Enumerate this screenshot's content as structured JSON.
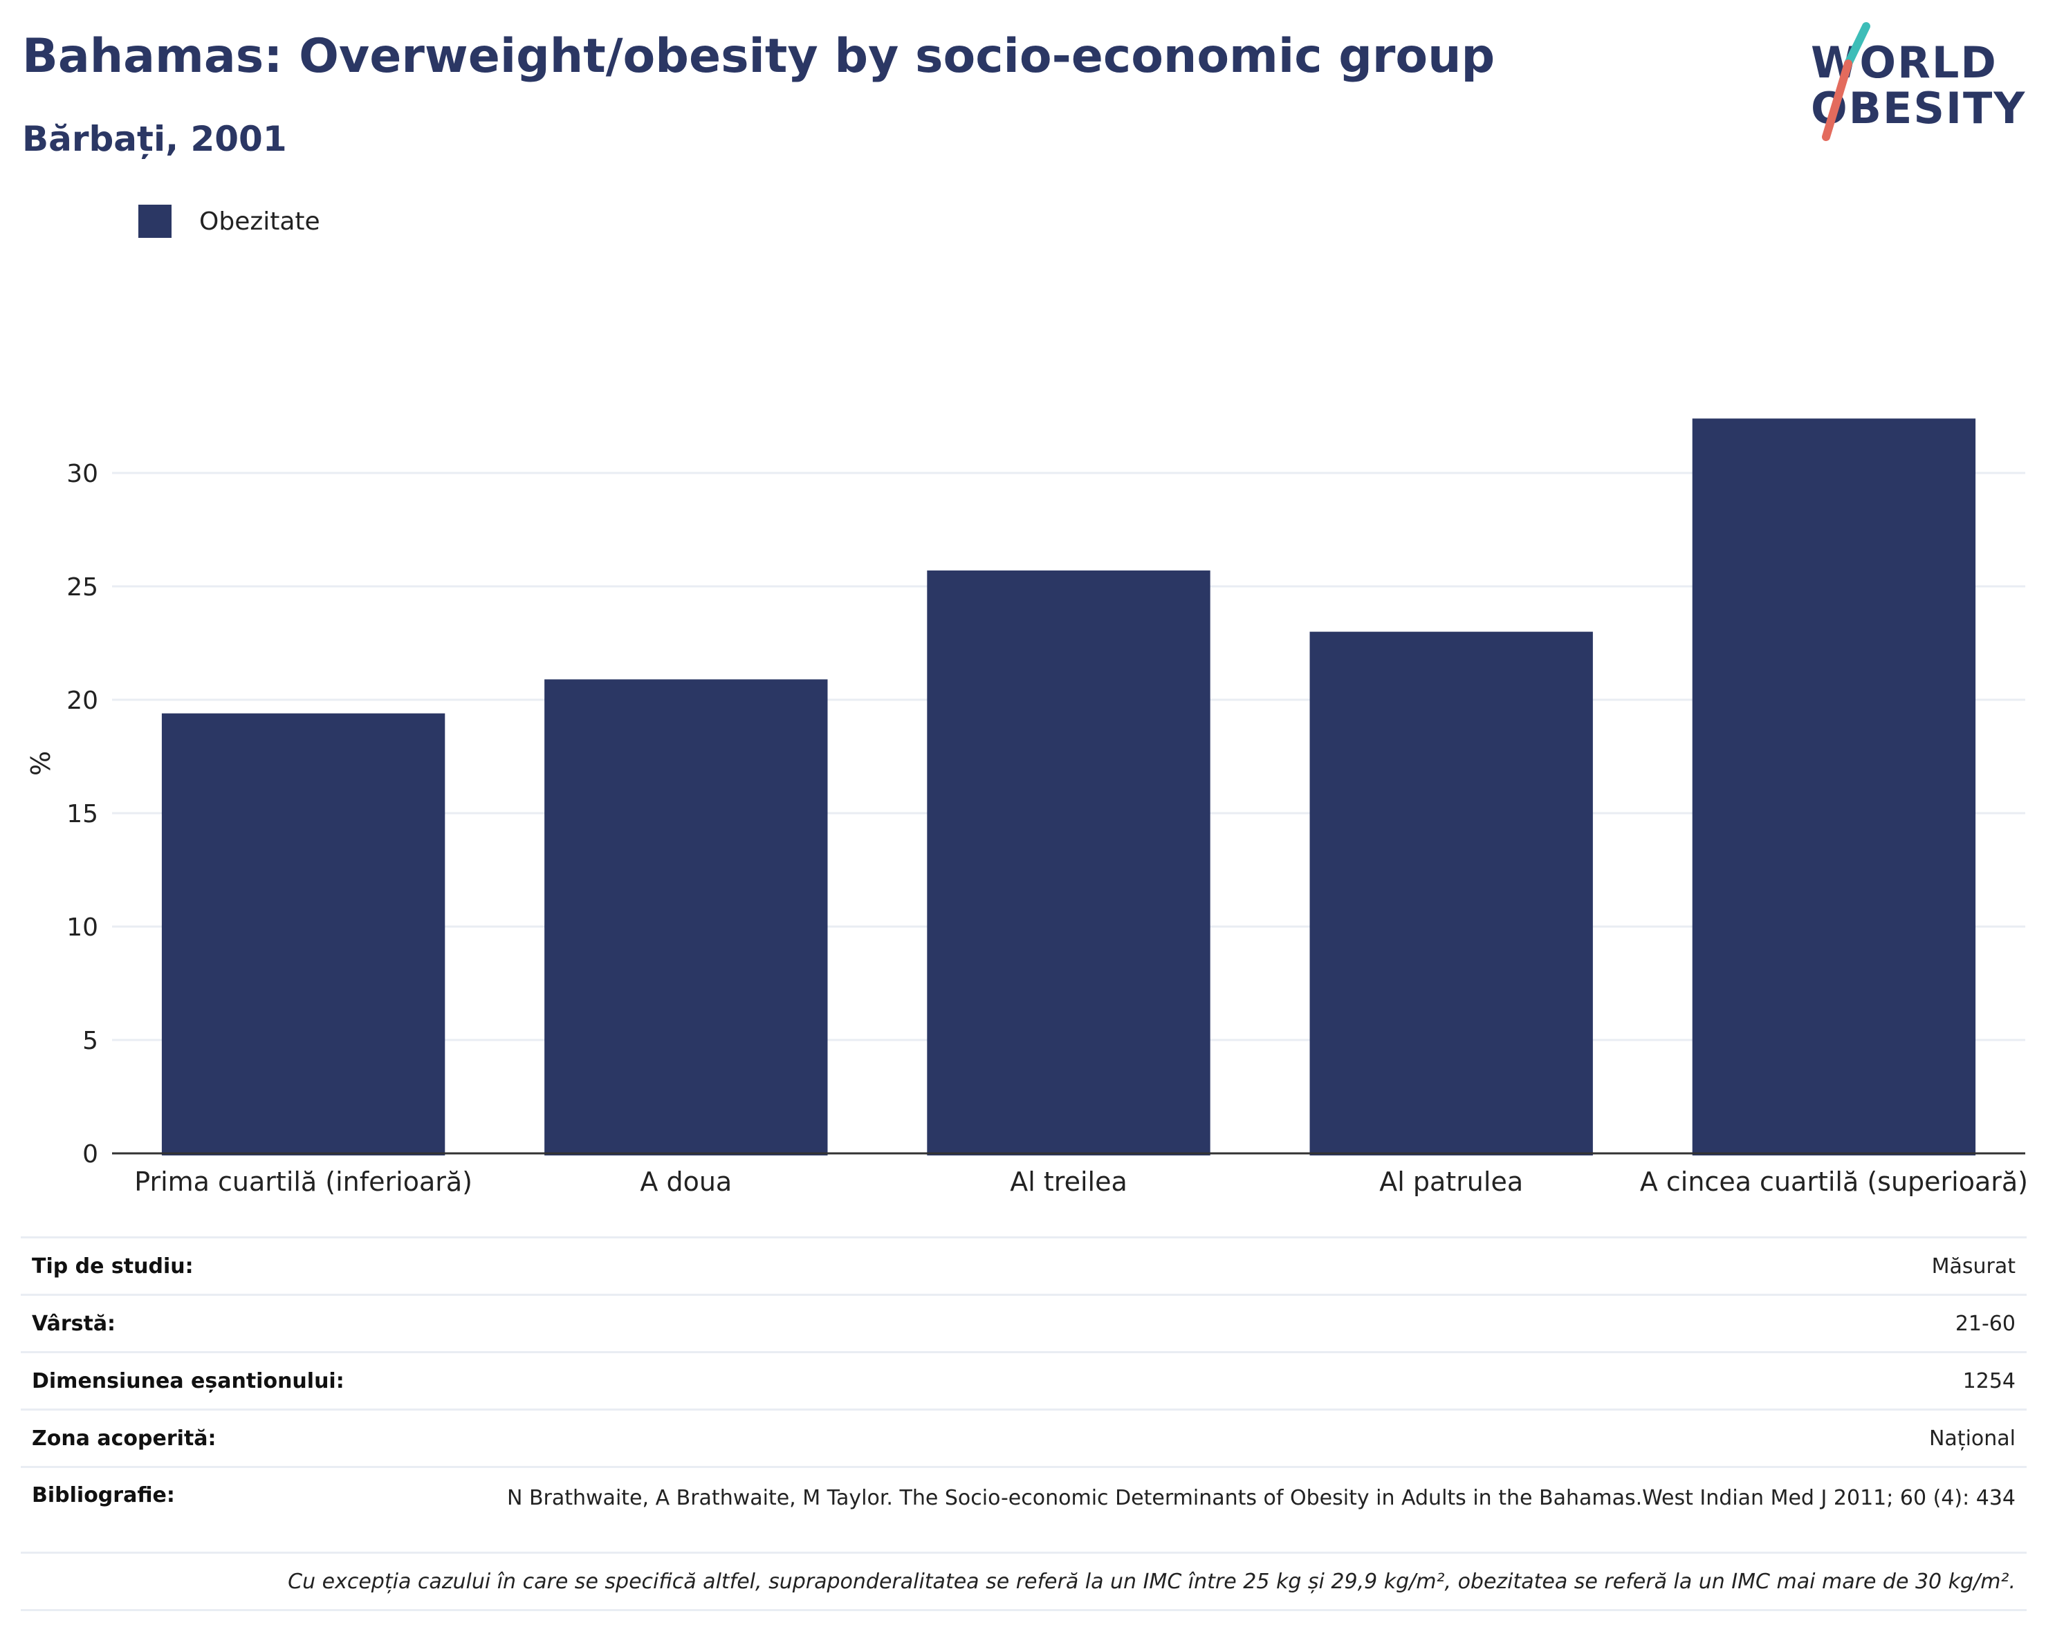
{
  "header": {
    "title": "Bahamas: Overweight/obesity by socio-economic group",
    "subtitle": "Bărbați, 2001"
  },
  "logo": {
    "line1": "WORLD",
    "line2": "OBESITY"
  },
  "colors": {
    "bar": "#2b3764",
    "title": "#2b3764",
    "grid": "#e9edf3",
    "logo_teal": "#3dbdb8",
    "logo_coral": "#e36b5d"
  },
  "chart_data": {
    "type": "bar",
    "categories": [
      "Prima cuartilă (inferioară)",
      "A doua",
      "Al treilea",
      "Al patrulea",
      "A cincea cuartilă (superioară)"
    ],
    "series": [
      {
        "name": "Obezitate",
        "values": [
          19.4,
          20.9,
          25.7,
          23.0,
          32.4
        ]
      }
    ],
    "ylabel": "%",
    "ylim": [
      0,
      35
    ],
    "yticks": [
      0,
      5,
      10,
      15,
      20,
      25,
      30
    ],
    "grid": true,
    "legend": "top-left"
  },
  "meta": [
    {
      "label": "Tip de studiu:",
      "value": "Măsurat"
    },
    {
      "label": "Vârstă:",
      "value": "21-60"
    },
    {
      "label": "Dimensiunea eșantionului:",
      "value": "1254"
    },
    {
      "label": "Zona acoperită:",
      "value": "Național"
    },
    {
      "label": "Bibliografie:",
      "value": "N Brathwaite, A Brathwaite, M Taylor. The Socio-economic Determinants of Obesity in Adults in the Bahamas.West Indian Med J 2011; 60 (4): 434"
    }
  ],
  "note": "Cu excepția cazului în care se specifică altfel, supraponderalitatea se referă la un IMC între 25 kg și 29,9 kg/m², obezitatea se referă la un IMC mai mare de 30 kg/m²."
}
